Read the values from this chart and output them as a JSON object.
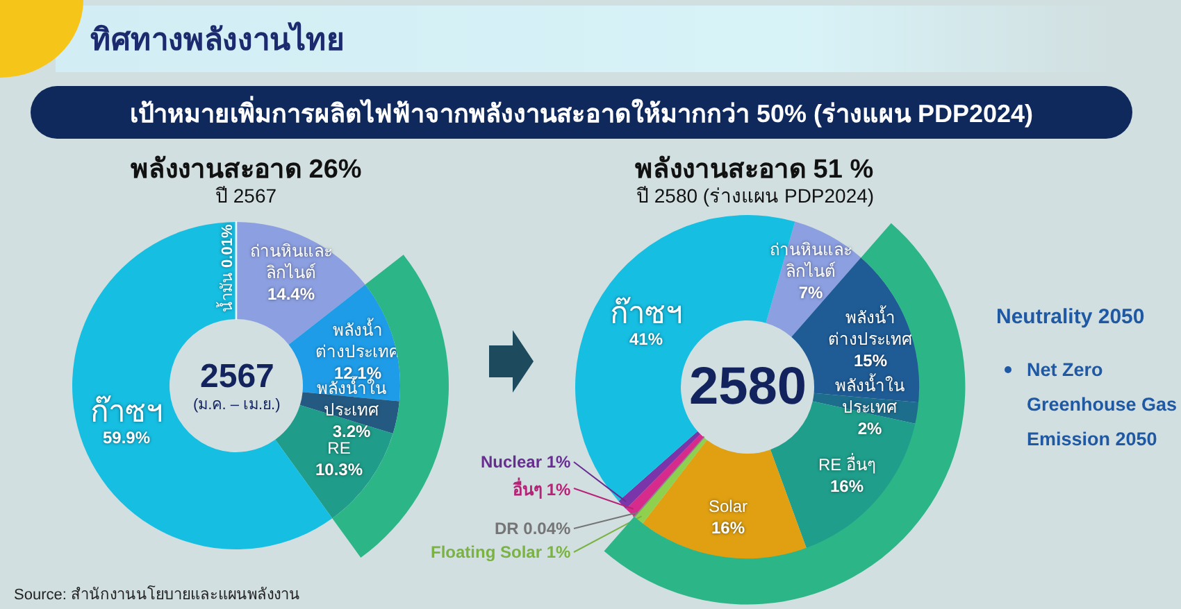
{
  "chart_data": [
    {
      "type": "other",
      "title": "ทิศทางพลังงานไทย",
      "subtitle": "เป้าหมายเพิ่มการผลิตไฟฟ้าจากพลังงานสะอาดให้มากกว่า 50% (ร่างแผน PDP2024)",
      "annotations": [
        "Source: สำนักงานนโยบายและแผนพลังงาน"
      ]
    },
    {
      "type": "donut",
      "title": "พลังงานสะอาด 26%",
      "subtitle": "ปี 2567",
      "categories": [
        "ถ่านหินและ\nลิกไนต์",
        "พลังน้ำ\nต่างประเทศ",
        "พลังน้ำใน\nประเทศ",
        "RE",
        "ก๊าซฯ",
        "น้ำมัน"
      ],
      "values": [
        14.4,
        12.1,
        3.2,
        10.3,
        59.9,
        0.01
      ],
      "value_labels": [
        "14.4%",
        "12.1%",
        "3.2%",
        "10.3%",
        "59.9%",
        "0.01%"
      ],
      "colors": [
        "#8c9fe0",
        "#1f9ce8",
        "#245a82",
        "#1f9d8a",
        "#16bee2",
        "#eaf6fa"
      ],
      "annotations": [
        "2567",
        "(ม.ค. – เม.ย.)"
      ]
    },
    {
      "type": "donut",
      "title": "พลังงานสะอาด 51 %",
      "subtitle": "ปี 2580 (ร่างแผน PDP2024)",
      "categories": [
        "ถ่านหินและ\nลิกไนต์",
        "พลังน้ำ\nต่างประเทศ",
        "พลังน้ำใน\nประเทศ",
        "RE อื่นๆ",
        "Solar",
        "Floating Solar",
        "DR",
        "อื่นๆ",
        "Nuclear",
        "ก๊าซฯ"
      ],
      "values": [
        7,
        15,
        2,
        16,
        16,
        1,
        0.04,
        1,
        1,
        41
      ],
      "value_labels": [
        "7%",
        "15%",
        "2%",
        "16%",
        "16%",
        "1%",
        "0.04%",
        "1%",
        "1%",
        "41%"
      ],
      "colors": [
        "#8c9fe0",
        "#1f5c96",
        "#1d6d8d",
        "#1f9e8c",
        "#e0a012",
        "#8fd14f",
        "#8a8a8a",
        "#d62a8c",
        "#7a35aa",
        "#16bee2"
      ],
      "annotations": [
        "2580"
      ]
    },
    {
      "type": "other",
      "annotations": [
        "Neutrality 2050",
        "Net Zero\nGreenhouse Gas\nEmission 2050"
      ]
    }
  ]
}
